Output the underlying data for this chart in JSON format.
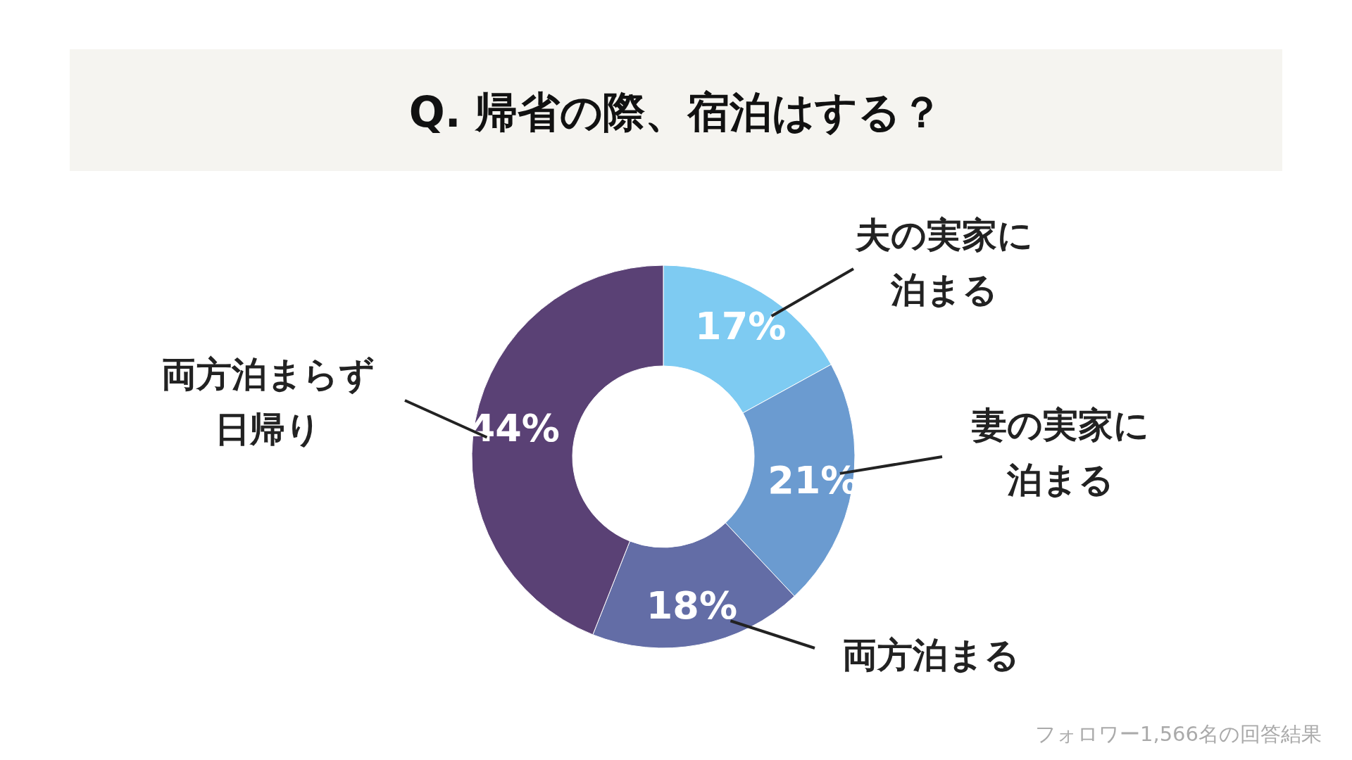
{
  "chart_data": {
    "type": "donut",
    "title": "Q. 帰省の際、宿泊はする？",
    "categories": [
      "夫の実家に泊まる",
      "妻の実家に泊まる",
      "両方泊まる",
      "両方泊まらず日帰り"
    ],
    "values": [
      17,
      21,
      18,
      44
    ],
    "colors": [
      "#7ecbf2",
      "#6b9bd0",
      "#636da6",
      "#5a4175"
    ],
    "value_labels": [
      "17%",
      "21%",
      "18%",
      "44%"
    ],
    "annotations": [
      "フォロワー1,566名の回答結果"
    ]
  }
}
